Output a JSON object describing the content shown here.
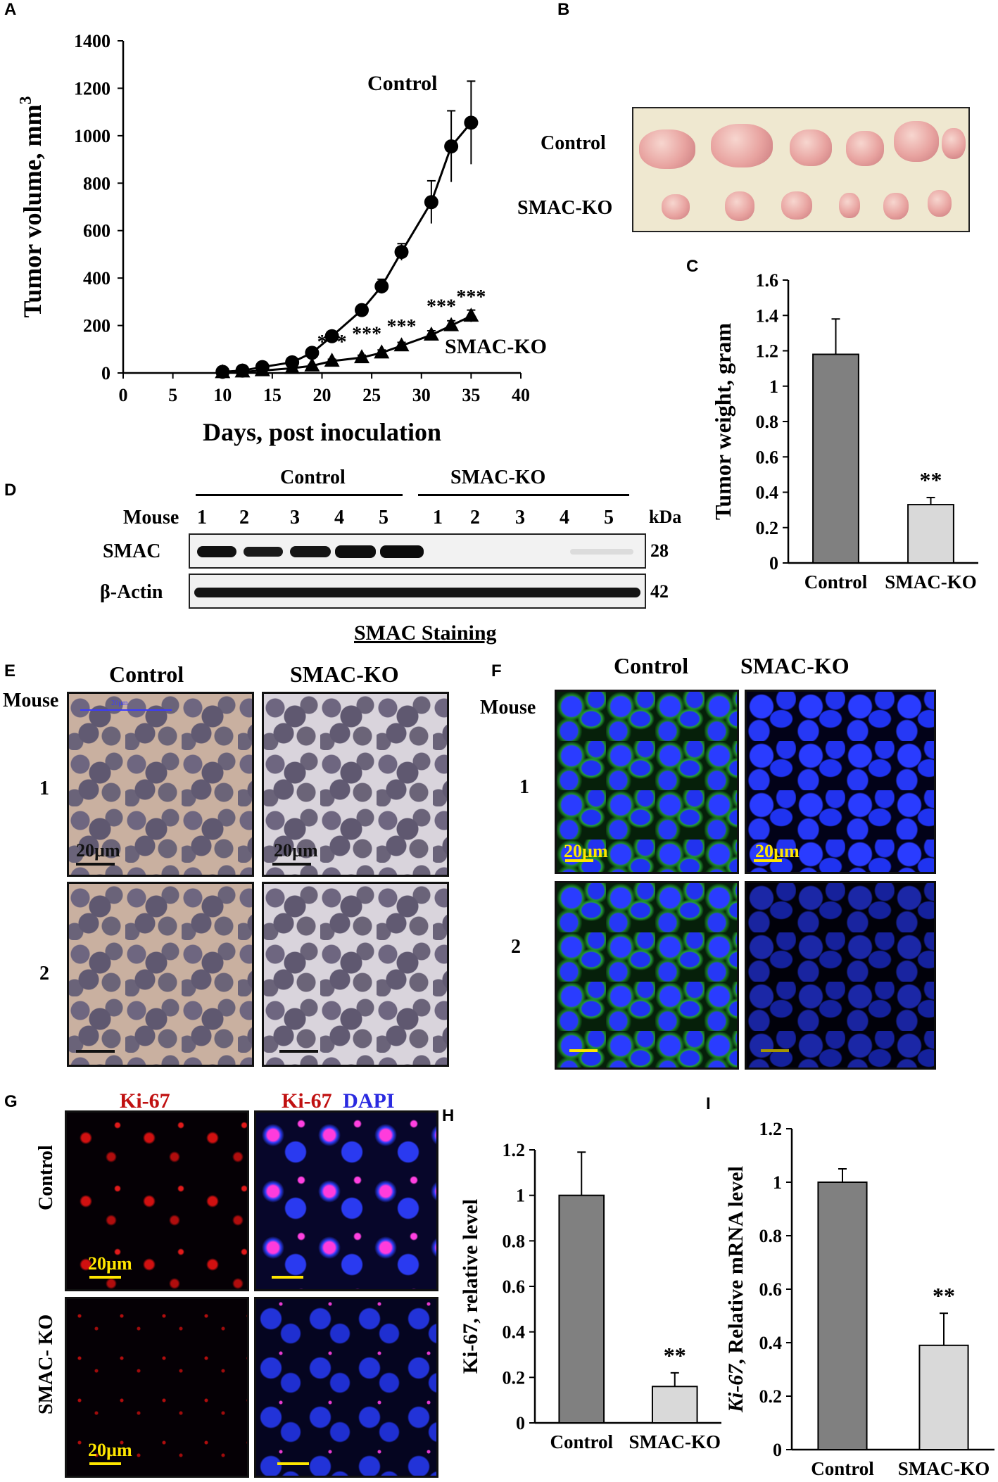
{
  "panel_labels": {
    "A": "A",
    "B": "B",
    "C": "C",
    "D": "D",
    "E": "E",
    "F": "F",
    "G": "G",
    "H": "H",
    "I": "I"
  },
  "chart_data": [
    {
      "panel": "A",
      "type": "line",
      "xlabel": "Days, post inoculation",
      "ylabel": "Tumor volume, mm3",
      "ylabel_main": "Tumor volume, mm",
      "ylabel_sup": "3",
      "xlim": [
        0,
        40
      ],
      "ylim": [
        0,
        1400
      ],
      "xticks": [
        "0",
        "5",
        "10",
        "15",
        "20",
        "25",
        "30",
        "35",
        "40"
      ],
      "yticks": [
        "0",
        "200",
        "400",
        "600",
        "800",
        "1000",
        "1200",
        "1400"
      ],
      "series": [
        {
          "name": "Control",
          "marker": "circle",
          "x": [
            10,
            12,
            14,
            17,
            19,
            21,
            24,
            26,
            28,
            31,
            33,
            35
          ],
          "y": [
            5,
            10,
            25,
            45,
            85,
            155,
            265,
            365,
            510,
            720,
            955,
            1055
          ],
          "err": [
            5,
            5,
            8,
            10,
            12,
            15,
            20,
            30,
            35,
            90,
            150,
            175
          ]
        },
        {
          "name": "SMAC-KO",
          "marker": "triangle",
          "x": [
            10,
            12,
            14,
            17,
            19,
            21,
            24,
            26,
            28,
            31,
            33,
            35
          ],
          "y": [
            2,
            5,
            10,
            20,
            30,
            50,
            65,
            85,
            115,
            160,
            200,
            240
          ],
          "err": [
            2,
            3,
            4,
            5,
            6,
            8,
            10,
            12,
            14,
            18,
            20,
            25
          ]
        }
      ],
      "significance": [
        {
          "x": 21,
          "label": "***"
        },
        {
          "x": 24.5,
          "label": "***"
        },
        {
          "x": 28,
          "label": "***"
        },
        {
          "x": 32,
          "label": "***"
        },
        {
          "x": 35,
          "label": "***"
        }
      ]
    },
    {
      "panel": "C",
      "type": "bar",
      "ylabel": "Tumor weight, gram",
      "categories": [
        "Control",
        "SMAC-KO"
      ],
      "values": [
        1.18,
        0.33
      ],
      "errors": [
        0.2,
        0.04
      ],
      "colors": [
        "#808080",
        "#d9d9d9"
      ],
      "ylim": [
        0,
        1.6
      ],
      "yticks": [
        "0",
        "0.2",
        "0.4",
        "0.6",
        "0.8",
        "1",
        "1.2",
        "1.4",
        "1.6"
      ],
      "annotation": "**"
    },
    {
      "panel": "H",
      "type": "bar",
      "ylabel": "Ki-67, relative level",
      "categories": [
        "Control",
        "SMAC-KO"
      ],
      "values": [
        1.0,
        0.16
      ],
      "errors": [
        0.19,
        0.06
      ],
      "colors": [
        "#808080",
        "#d9d9d9"
      ],
      "ylim": [
        0,
        1.2
      ],
      "yticks": [
        "0",
        "0.2",
        "0.4",
        "0.6",
        "0.8",
        "1",
        "1.2"
      ],
      "annotation": "**"
    },
    {
      "panel": "I",
      "type": "bar",
      "ylabel": "Ki-67, Relative mRNA  level",
      "ylabel_italic": "Ki-67",
      "ylabel_rest": ", Relative mRNA  level",
      "categories": [
        "Control",
        "SMAC-KO"
      ],
      "values": [
        1.0,
        0.39
      ],
      "errors": [
        0.05,
        0.12
      ],
      "colors": [
        "#808080",
        "#d9d9d9"
      ],
      "ylim": [
        0,
        1.2
      ],
      "yticks": [
        "0",
        "0.2",
        "0.4",
        "0.6",
        "0.8",
        "1",
        "1.2"
      ],
      "annotation": "**"
    }
  ],
  "panel_b": {
    "row_labels": [
      "Control",
      "SMAC-KO"
    ]
  },
  "panel_d": {
    "group_control": "Control",
    "group_ko": "SMAC-KO",
    "mouse_label": "Mouse",
    "lane_numbers": [
      "1",
      "2",
      "3",
      "4",
      "5",
      "1",
      "2",
      "3",
      "4",
      "5"
    ],
    "kda_label": "kDa",
    "rows": [
      {
        "label": "SMAC",
        "kda": "28"
      },
      {
        "label": "β-Actin",
        "kda": "42"
      }
    ]
  },
  "staining_title": "SMAC Staining",
  "panel_e": {
    "col_control": "Control",
    "col_ko": "SMAC-KO",
    "mouse_label": "Mouse",
    "rows": [
      "1",
      "2"
    ],
    "scale": "20µm",
    "inner_scale": "20µm"
  },
  "panel_f": {
    "col_control": "Control",
    "col_ko": "SMAC-KO",
    "mouse_label": "Mouse",
    "rows": [
      "1",
      "2"
    ],
    "scale": "20µm"
  },
  "panel_g": {
    "col1": "Ki-67",
    "col2_a": "Ki-67",
    "col2_b": "DAPI",
    "row_control": "Control",
    "row_ko": "SMAC- KO",
    "scale": "20µm"
  }
}
